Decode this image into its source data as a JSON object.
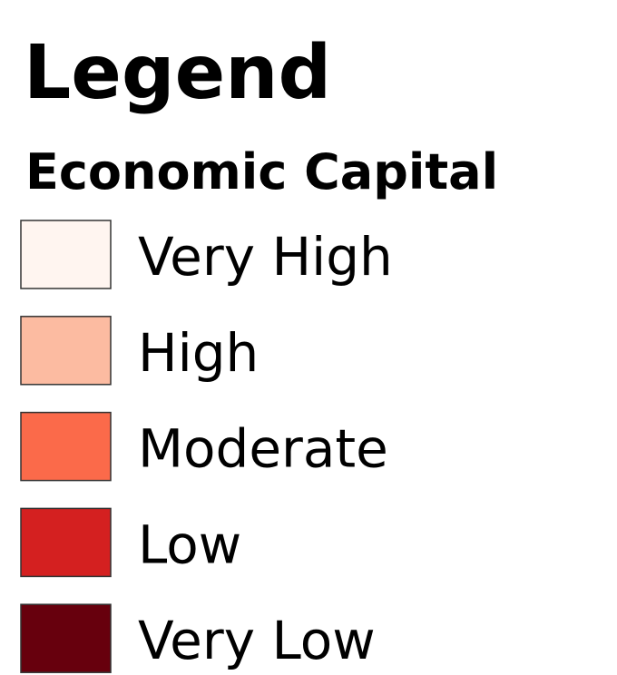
{
  "legend": {
    "title": "Legend",
    "subtitle": "Economic Capital",
    "items": [
      {
        "label": "Very High",
        "color": "#fff5f0"
      },
      {
        "label": "High",
        "color": "#fcbba1"
      },
      {
        "label": "Moderate",
        "color": "#fb6a4a"
      },
      {
        "label": "Low",
        "color": "#d42020"
      },
      {
        "label": "Very Low",
        "color": "#67000d"
      }
    ]
  }
}
